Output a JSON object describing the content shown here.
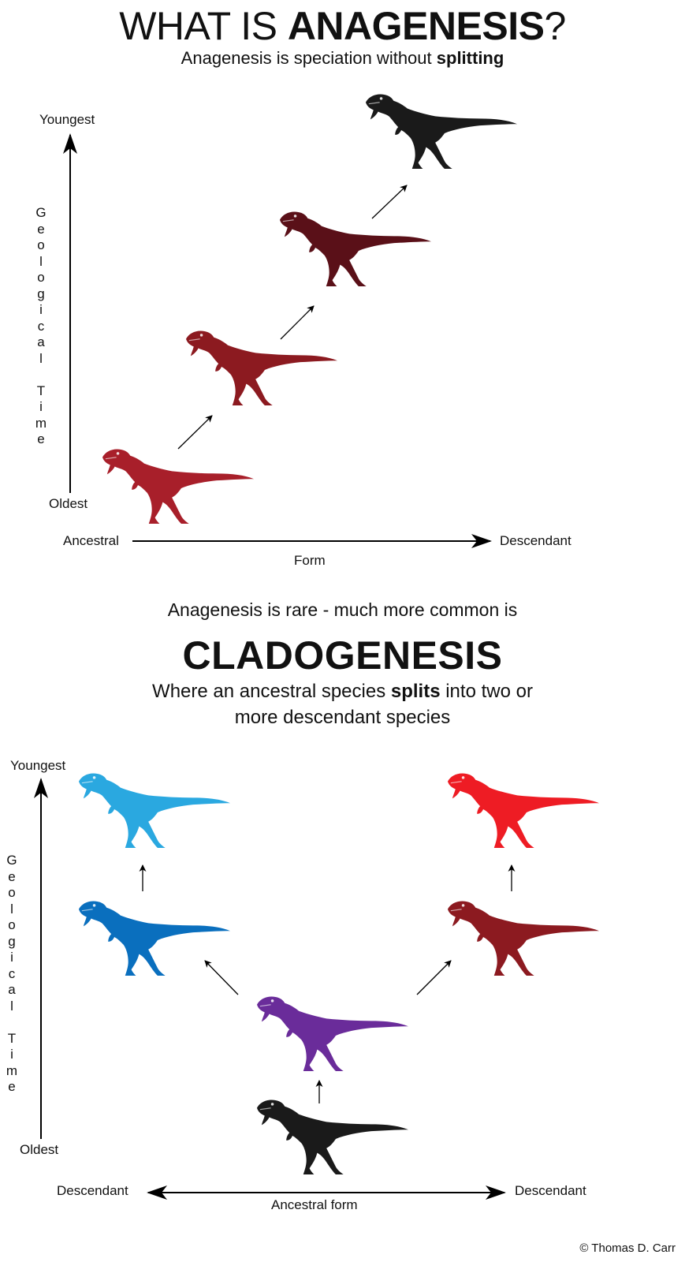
{
  "header": {
    "title_plain": "WHAT IS ",
    "title_bold": "ANAGENESIS",
    "title_end": "?",
    "subtitle_plain": "Anagenesis is speciation without ",
    "subtitle_bold": "splitting"
  },
  "anagenesis_diagram": {
    "y_top_label": "Youngest",
    "y_bottom_label": "Oldest",
    "y_axis_title": "Geological Time",
    "x_left_label": "Ancestral",
    "x_right_label": "Descendant",
    "x_axis_title": "Form",
    "species_colors": [
      "#a81f2a",
      "#8c1a20",
      "#5a1018",
      "#1a1a1a"
    ]
  },
  "transition": {
    "rare_text": "Anagenesis is rare - much more common is",
    "clado_title": "CLADOGENESIS",
    "where_line1_plain": "Where an ancestral species ",
    "where_line1_bold": "splits",
    "where_line1_end": " into two or",
    "where_line2": "more descendant species"
  },
  "cladogenesis_diagram": {
    "y_top_label": "Youngest",
    "y_bottom_label": "Oldest",
    "y_axis_title": "Geological Time",
    "x_left_label": "Descendant",
    "x_right_label": "Descendant",
    "x_axis_title": "Ancestral form",
    "species_colors": {
      "ancestor": "#1a1a1a",
      "intermediate": "#6a2c9a",
      "left_mid": "#0a6fbe",
      "left_top": "#2aa8e0",
      "right_mid": "#8c1a20",
      "right_top": "#ee1c24"
    }
  },
  "credit": "© Thomas D. Carr"
}
